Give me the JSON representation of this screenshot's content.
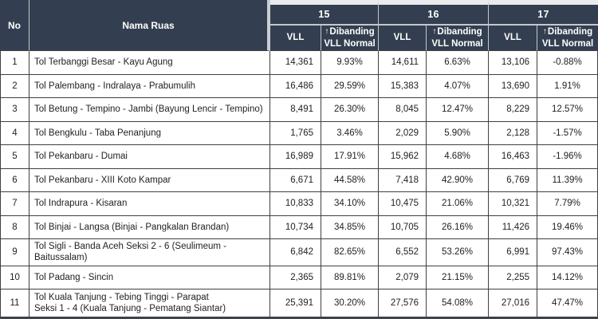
{
  "colors": {
    "header_bg": "#333F50",
    "header_text": "#FFFFFF",
    "header_line": "#C2C8CE",
    "header_strip": "#E9EBED",
    "header_gap": "#C9CED3",
    "data_border": "#3F3F3F",
    "text": "#1F1F1F",
    "row_bg": "#FFFFFF",
    "bottom_bar": "#3E454E"
  },
  "table": {
    "headers": {
      "no": "No",
      "nama_ruas": "Nama Ruas",
      "groups": [
        {
          "label": "15",
          "vll_label": "VLL",
          "arrow": "↑",
          "dibanding_line1": "Dibanding",
          "dibanding_line2": "VLL Normal"
        },
        {
          "label": "16",
          "vll_label": "VLL",
          "arrow": "↑",
          "dibanding_line1": "Dibanding",
          "dibanding_line2": "VLL Normal"
        },
        {
          "label": "17",
          "vll_label": "VLL",
          "arrow": "↑",
          "dibanding_line1": "Dibanding",
          "dibanding_line2": "VLL Normal"
        }
      ]
    },
    "rows": [
      {
        "no": "1",
        "nama": "Tol Terbanggi Besar - Kayu Agung",
        "values": [
          "14,361",
          "9.93%",
          "14,611",
          "6.63%",
          "13,106",
          "-0.88%"
        ]
      },
      {
        "no": "2",
        "nama": "Tol Palembang - Indralaya - Prabumulih",
        "values": [
          "16,486",
          "29.59%",
          "15,383",
          "4.07%",
          "13,690",
          "1.91%"
        ]
      },
      {
        "no": "3",
        "nama": "Tol Betung - Tempino - Jambi (Bayung Lencir - Tempino)",
        "values": [
          "8,491",
          "26.30%",
          "8,045",
          "12.47%",
          "8,229",
          "12.57%"
        ]
      },
      {
        "no": "4",
        "nama": "Tol Bengkulu - Taba Penanjung",
        "values": [
          "1,765",
          "3.46%",
          "2,029",
          "5.90%",
          "2,128",
          "-1.57%"
        ]
      },
      {
        "no": "5",
        "nama": "Tol Pekanbaru - Dumai",
        "values": [
          "16,989",
          "17.91%",
          "15,962",
          "4.68%",
          "16,463",
          "-1.96%"
        ]
      },
      {
        "no": "6",
        "nama": "Tol Pekanbaru  - XIII Koto Kampar",
        "values": [
          "6,671",
          "44.58%",
          "7,418",
          "42.90%",
          "6,769",
          "11.39%"
        ]
      },
      {
        "no": "7",
        "nama": "Tol Indrapura - Kisaran",
        "values": [
          "10,833",
          "34.10%",
          "10,475",
          "21.06%",
          "10,321",
          "7.79%"
        ]
      },
      {
        "no": "8",
        "nama": "Tol Binjai - Langsa (Binjai - Pangkalan Brandan)",
        "values": [
          "10,734",
          "34.85%",
          "10,705",
          "26.16%",
          "11,426",
          "19.46%"
        ]
      },
      {
        "no": "9",
        "nama": "Tol Sigli - Banda Aceh Seksi 2 - 6 (Seulimeum - Baitussalam)",
        "values": [
          "6,842",
          "82.65%",
          "6,552",
          "53.26%",
          "6,991",
          "97.43%"
        ]
      },
      {
        "no": "10",
        "nama": "Tol Padang - Sincin",
        "values": [
          "2,365",
          "89.81%",
          "2,079",
          "21.15%",
          "2,255",
          "14.12%"
        ]
      },
      {
        "no": "11",
        "nama": "Tol Kuala Tanjung - Tebing Tinggi - Parapat\nSeksi 1 - 4 (Kuala Tanjung - Pematang Siantar)",
        "tall": true,
        "values": [
          "25,391",
          "30.20%",
          "27,576",
          "54.08%",
          "27,016",
          "47.47%"
        ]
      }
    ]
  }
}
